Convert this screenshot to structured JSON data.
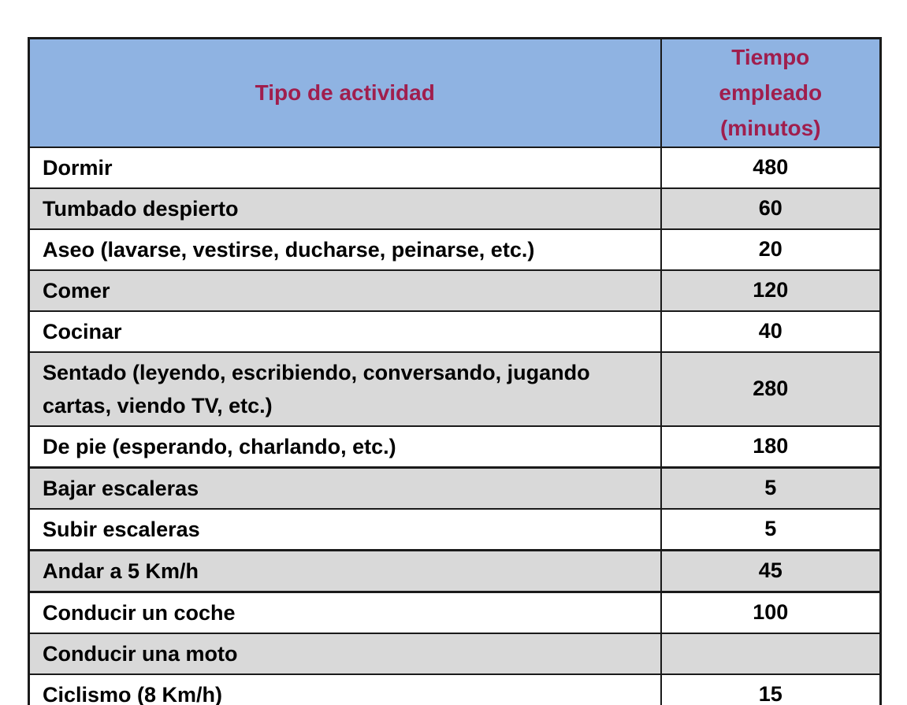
{
  "table": {
    "header": {
      "activity_label": "Tipo de actividad",
      "time_label_lines": [
        "Tiempo",
        "empleado",
        "(minutos)"
      ]
    },
    "rows": [
      {
        "activity": "Dormir",
        "minutes": "480"
      },
      {
        "activity": "Tumbado despierto",
        "minutes": "60"
      },
      {
        "activity": "Aseo (lavarse, vestirse, ducharse, peinarse, etc.)",
        "minutes": "20"
      },
      {
        "activity": "Comer",
        "minutes": "120"
      },
      {
        "activity": "Cocinar",
        "minutes": "40"
      },
      {
        "activity": "Sentado (leyendo, escribiendo, conversando, jugando cartas, viendo TV, etc.)",
        "minutes": "280"
      },
      {
        "activity": "De pie (esperando, charlando, etc.)",
        "minutes": "180",
        "thick_border_after": true
      },
      {
        "activity": "Bajar escaleras",
        "minutes": "5"
      },
      {
        "activity": "Subir escaleras",
        "minutes": "5",
        "thick_border_after": true
      },
      {
        "activity": "Andar a 5 Km/h",
        "minutes": "45",
        "thick_border_after": true
      },
      {
        "activity": "Conducir un coche",
        "minutes": "100"
      },
      {
        "activity": "Conducir una moto",
        "minutes": ""
      },
      {
        "activity": "Ciclismo (8 Km/h)",
        "minutes": "15"
      }
    ],
    "colors": {
      "header_bg": "#8FB3E2",
      "header_text": "#A01E4D",
      "row_alt_bg": "#D9D9D9",
      "border": "#1A1A1A"
    }
  }
}
